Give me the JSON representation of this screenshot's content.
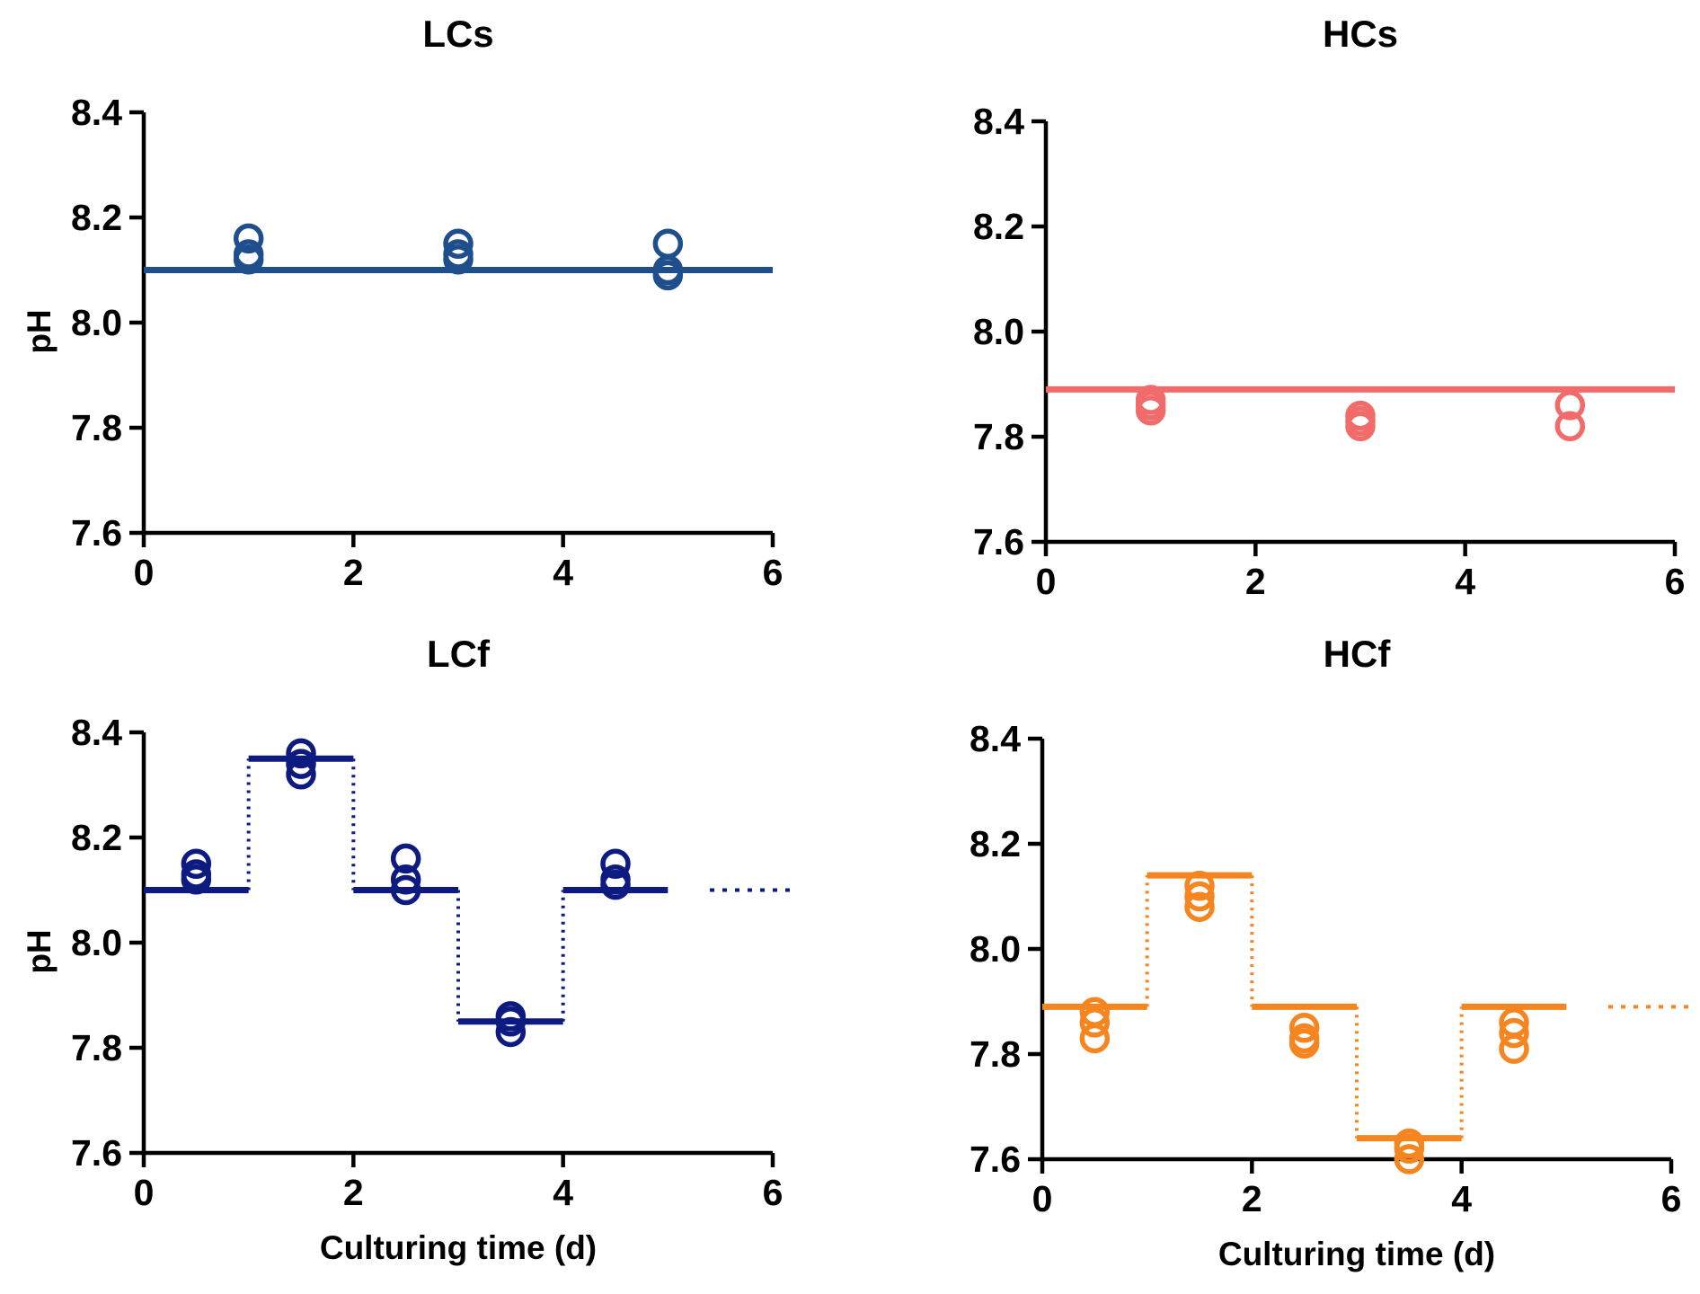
{
  "chart_data": [
    {
      "id": "lcs",
      "type": "scatter",
      "title": "LCs",
      "xlabel": "",
      "ylabel": "pH",
      "xlim": [
        0,
        6
      ],
      "ylim": [
        7.6,
        8.4
      ],
      "xticks": [
        "0",
        "2",
        "4",
        "6"
      ],
      "yticks": [
        "7.6",
        "7.8",
        "8.0",
        "8.2",
        "8.4"
      ],
      "color": "#1f4e8c",
      "setpoint": [
        {
          "x_start": 0,
          "x_end": 6,
          "y": 8.1
        }
      ],
      "points": [
        {
          "x": 1,
          "y": [
            8.16,
            8.13,
            8.12
          ]
        },
        {
          "x": 3,
          "y": [
            8.15,
            8.13,
            8.12
          ]
        },
        {
          "x": 5,
          "y": [
            8.15,
            8.1,
            8.09
          ]
        }
      ]
    },
    {
      "id": "hcs",
      "type": "scatter",
      "title": "HCs",
      "xlabel": "",
      "ylabel": "",
      "xlim": [
        0,
        6
      ],
      "ylim": [
        7.6,
        8.4
      ],
      "xticks": [
        "0",
        "2",
        "4",
        "6"
      ],
      "yticks": [
        "7.6",
        "7.8",
        "8.0",
        "8.2",
        "8.4"
      ],
      "color": "#f26b6b",
      "setpoint": [
        {
          "x_start": 0,
          "x_end": 6,
          "y": 7.89
        }
      ],
      "points": [
        {
          "x": 1,
          "y": [
            7.87,
            7.86,
            7.85
          ]
        },
        {
          "x": 3,
          "y": [
            7.84,
            7.83,
            7.82
          ]
        },
        {
          "x": 5,
          "y": [
            7.86,
            7.82
          ]
        }
      ]
    },
    {
      "id": "lcf",
      "type": "scatter",
      "title": "LCf",
      "xlabel": "Culturing time (d)",
      "ylabel": "pH",
      "xlim": [
        0,
        6
      ],
      "ylim": [
        7.6,
        8.4
      ],
      "xticks": [
        "0",
        "2",
        "4",
        "6"
      ],
      "yticks": [
        "7.6",
        "7.8",
        "8.0",
        "8.2",
        "8.4"
      ],
      "color": "#0d1a80",
      "setpoint": [
        {
          "x_start": 0,
          "x_end": 1,
          "y": 8.1
        },
        {
          "x_start": 1,
          "x_end": 2,
          "y": 8.35
        },
        {
          "x_start": 2,
          "x_end": 3,
          "y": 8.1
        },
        {
          "x_start": 3,
          "x_end": 4,
          "y": 7.85
        },
        {
          "x_start": 4,
          "x_end": 5,
          "y": 8.1
        }
      ],
      "continuation": {
        "x_start": 5.4,
        "x_end": 6.2,
        "y": 8.1
      },
      "points": [
        {
          "x": 0.5,
          "y": [
            8.15,
            8.13,
            8.12
          ]
        },
        {
          "x": 1.5,
          "y": [
            8.36,
            8.34,
            8.32
          ]
        },
        {
          "x": 2.5,
          "y": [
            8.16,
            8.12,
            8.1
          ]
        },
        {
          "x": 3.5,
          "y": [
            7.86,
            7.85,
            7.83
          ]
        },
        {
          "x": 4.5,
          "y": [
            8.15,
            8.12,
            8.11
          ]
        }
      ]
    },
    {
      "id": "hcf",
      "type": "scatter",
      "title": "HCf",
      "xlabel": "Culturing time (d)",
      "ylabel": "",
      "xlim": [
        0,
        6
      ],
      "ylim": [
        7.6,
        8.4
      ],
      "xticks": [
        "0",
        "2",
        "4",
        "6"
      ],
      "yticks": [
        "7.6",
        "7.8",
        "8.0",
        "8.2",
        "8.4"
      ],
      "color": "#f5851f",
      "setpoint": [
        {
          "x_start": 0,
          "x_end": 1,
          "y": 7.89
        },
        {
          "x_start": 1,
          "x_end": 2,
          "y": 8.14
        },
        {
          "x_start": 2,
          "x_end": 3,
          "y": 7.89
        },
        {
          "x_start": 3,
          "x_end": 4,
          "y": 7.64
        },
        {
          "x_start": 4,
          "x_end": 5,
          "y": 7.89
        }
      ],
      "continuation": {
        "x_start": 5.4,
        "x_end": 6.2,
        "y": 7.89
      },
      "points": [
        {
          "x": 0.5,
          "y": [
            7.88,
            7.86,
            7.83
          ]
        },
        {
          "x": 1.5,
          "y": [
            8.12,
            8.1,
            8.08
          ]
        },
        {
          "x": 2.5,
          "y": [
            7.85,
            7.83,
            7.82
          ]
        },
        {
          "x": 3.5,
          "y": [
            7.63,
            7.62,
            7.6
          ]
        },
        {
          "x": 4.5,
          "y": [
            7.86,
            7.84,
            7.81
          ]
        }
      ]
    }
  ]
}
